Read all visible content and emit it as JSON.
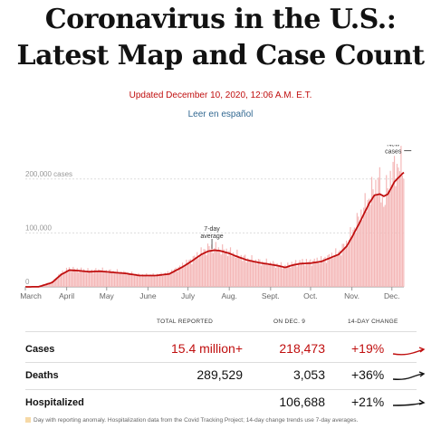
{
  "header": {
    "title_line1": "Coronavirus in the U.S.:",
    "title_line2": "Latest Map and Case Count",
    "updated": "Updated December 10, 2020, 12:06 A.M. E.T.",
    "lang_link": "Leer en español"
  },
  "chart_data": {
    "type": "bar",
    "title": "",
    "ylabel": "",
    "ylim": [
      0,
      250000
    ],
    "yticks": [
      {
        "value": 0,
        "label": "0"
      },
      {
        "value": 100000,
        "label": "100,000"
      },
      {
        "value": 200000,
        "label": "200,000 cases"
      }
    ],
    "months": [
      {
        "label": "March",
        "day": 0
      },
      {
        "label": "April",
        "day": 31
      },
      {
        "label": "May",
        "day": 61
      },
      {
        "label": "June",
        "day": 92
      },
      {
        "label": "July",
        "day": 122
      },
      {
        "label": "Aug.",
        "day": 153
      },
      {
        "label": "Sept.",
        "day": 184
      },
      {
        "label": "Oct.",
        "day": 214
      },
      {
        "label": "Nov.",
        "day": 245
      },
      {
        "label": "Dec.",
        "day": 275
      }
    ],
    "series": [
      {
        "name": "7-day average",
        "color": "#c00f0f",
        "keypoints": [
          [
            0,
            0
          ],
          [
            10,
            200
          ],
          [
            20,
            8000
          ],
          [
            27,
            23000
          ],
          [
            33,
            31000
          ],
          [
            40,
            30000
          ],
          [
            48,
            28000
          ],
          [
            56,
            29000
          ],
          [
            65,
            27000
          ],
          [
            75,
            25000
          ],
          [
            86,
            21000
          ],
          [
            98,
            21000
          ],
          [
            108,
            24000
          ],
          [
            118,
            37000
          ],
          [
            125,
            48000
          ],
          [
            132,
            60000
          ],
          [
            137,
            66000
          ],
          [
            142,
            68000
          ],
          [
            146,
            67000
          ],
          [
            152,
            63000
          ],
          [
            158,
            57000
          ],
          [
            166,
            50000
          ],
          [
            175,
            45000
          ],
          [
            183,
            42000
          ],
          [
            190,
            39000
          ],
          [
            195,
            36000
          ],
          [
            200,
            40000
          ],
          [
            206,
            43000
          ],
          [
            214,
            44000
          ],
          [
            222,
            47000
          ],
          [
            228,
            53000
          ],
          [
            235,
            60000
          ],
          [
            241,
            75000
          ],
          [
            245,
            92000
          ],
          [
            251,
            120000
          ],
          [
            258,
            155000
          ],
          [
            262,
            170000
          ],
          [
            266,
            172000
          ],
          [
            269,
            168000
          ],
          [
            272,
            172000
          ],
          [
            277,
            195000
          ],
          [
            283,
            210000
          ],
          [
            284,
            212000
          ]
        ]
      },
      {
        "name": "daily cases",
        "color": "#f4b7b7",
        "keypoints": [
          [
            0,
            0
          ],
          [
            10,
            300
          ],
          [
            20,
            9000
          ],
          [
            27,
            26000
          ],
          [
            33,
            34000
          ],
          [
            40,
            32000
          ],
          [
            48,
            30000
          ],
          [
            56,
            31000
          ],
          [
            65,
            29000
          ],
          [
            75,
            26000
          ],
          [
            86,
            22000
          ],
          [
            98,
            22000
          ],
          [
            108,
            26000
          ],
          [
            118,
            40000
          ],
          [
            125,
            51000
          ],
          [
            132,
            64000
          ],
          [
            137,
            72000
          ],
          [
            142,
            73000
          ],
          [
            146,
            70000
          ],
          [
            152,
            66000
          ],
          [
            158,
            60000
          ],
          [
            166,
            52000
          ],
          [
            175,
            47000
          ],
          [
            183,
            44000
          ],
          [
            190,
            41000
          ],
          [
            195,
            38000
          ],
          [
            200,
            43000
          ],
          [
            206,
            46000
          ],
          [
            214,
            47000
          ],
          [
            222,
            50000
          ],
          [
            228,
            56000
          ],
          [
            235,
            64000
          ],
          [
            241,
            80000
          ],
          [
            245,
            100000
          ],
          [
            251,
            130000
          ],
          [
            258,
            165000
          ],
          [
            262,
            185000
          ],
          [
            266,
            195000
          ],
          [
            269,
            150000
          ],
          [
            272,
            190000
          ],
          [
            277,
            220000
          ],
          [
            283,
            225000
          ],
          [
            284,
            220000
          ]
        ]
      }
    ],
    "annotations": [
      {
        "text_lines": [
          "7-day",
          "average"
        ],
        "day": 140
      },
      {
        "text_lines": [
          "New",
          "cases"
        ],
        "day": 276
      }
    ]
  },
  "table": {
    "headers": {
      "total": "TOTAL REPORTED",
      "day": "ON DEC. 9",
      "change": "14-DAY CHANGE"
    },
    "rows": [
      {
        "label": "Cases",
        "total": "15.4 million+",
        "day": "218,473",
        "change": "+19%",
        "red": true
      },
      {
        "label": "Deaths",
        "total": "289,529",
        "day": "3,053",
        "change": "+36%",
        "red": false
      },
      {
        "label": "Hospitalized",
        "total": "",
        "day": "106,688",
        "change": "+21%",
        "red": false
      }
    ],
    "footnote": "Day with reporting anomaly. Hospitalization data from the Covid Tracking Project; 14-day change trends use 7-day averages."
  }
}
